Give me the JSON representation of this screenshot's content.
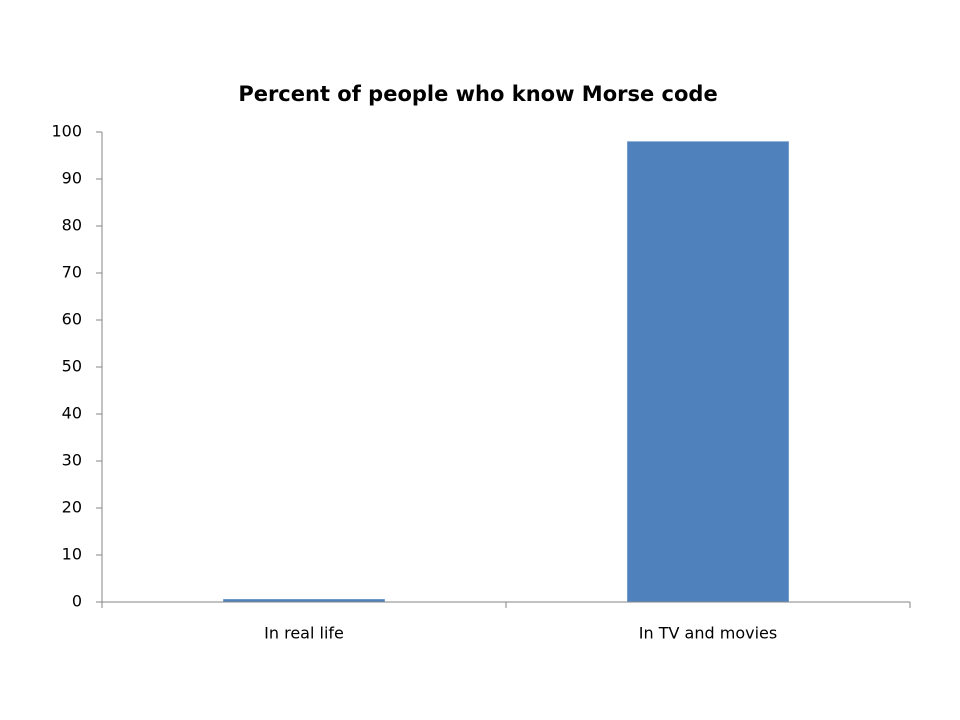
{
  "chart_data": {
    "type": "bar",
    "title": "Percent of people who know Morse code",
    "categories": [
      "In real life",
      "In TV and movies"
    ],
    "values": [
      0.6,
      98
    ],
    "color": "#4f81bd",
    "ylim": [
      0,
      100
    ],
    "yticks": [
      0,
      10,
      20,
      30,
      40,
      50,
      60,
      70,
      80,
      90,
      100
    ],
    "grid": false
  }
}
